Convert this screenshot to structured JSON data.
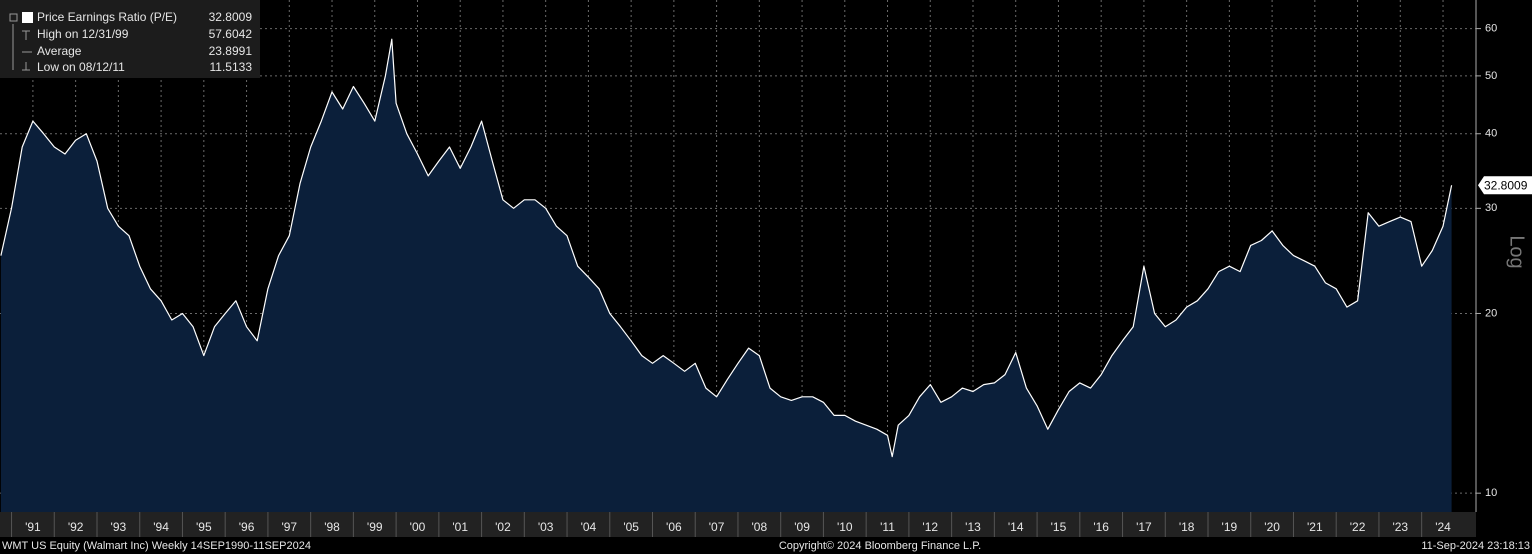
{
  "chart_data": {
    "type": "area",
    "scale": "log",
    "axis_label": "Log",
    "series": [
      {
        "name": "Price Earnings Ratio (P/E)",
        "color": "#ffffff",
        "fill": "#0b1f3a",
        "x": [
          1990.75,
          1991.0,
          1991.25,
          1991.5,
          1991.75,
          1992.0,
          1992.25,
          1992.5,
          1992.75,
          1993.0,
          1993.25,
          1993.5,
          1993.75,
          1994.0,
          1994.25,
          1994.5,
          1994.75,
          1995.0,
          1995.25,
          1995.5,
          1995.75,
          1996.0,
          1996.25,
          1996.5,
          1996.75,
          1997.0,
          1997.25,
          1997.5,
          1997.75,
          1998.0,
          1998.25,
          1998.5,
          1998.75,
          1999.0,
          1999.25,
          1999.5,
          1999.75,
          1999.9,
          2000.0,
          2000.25,
          2000.5,
          2000.75,
          2001.0,
          2001.25,
          2001.5,
          2001.75,
          2002.0,
          2002.25,
          2002.5,
          2002.75,
          2003.0,
          2003.25,
          2003.5,
          2003.75,
          2004.0,
          2004.25,
          2004.5,
          2004.75,
          2005.0,
          2005.25,
          2005.5,
          2005.75,
          2006.0,
          2006.25,
          2006.5,
          2006.75,
          2007.0,
          2007.25,
          2007.5,
          2007.75,
          2008.0,
          2008.25,
          2008.5,
          2008.75,
          2009.0,
          2009.25,
          2009.5,
          2009.75,
          2010.0,
          2010.25,
          2010.5,
          2010.75,
          2011.0,
          2011.25,
          2011.5,
          2011.61,
          2011.75,
          2012.0,
          2012.25,
          2012.5,
          2012.75,
          2013.0,
          2013.25,
          2013.5,
          2013.75,
          2014.0,
          2014.25,
          2014.5,
          2014.75,
          2015.0,
          2015.25,
          2015.5,
          2015.75,
          2016.0,
          2016.25,
          2016.5,
          2016.75,
          2017.0,
          2017.25,
          2017.5,
          2017.75,
          2018.0,
          2018.25,
          2018.5,
          2018.75,
          2019.0,
          2019.25,
          2019.5,
          2019.75,
          2020.0,
          2020.25,
          2020.5,
          2020.75,
          2021.0,
          2021.25,
          2021.5,
          2021.75,
          2022.0,
          2022.25,
          2022.5,
          2022.75,
          2023.0,
          2023.25,
          2023.5,
          2023.75,
          2024.0,
          2024.25,
          2024.5,
          2024.7
        ],
        "values": [
          25,
          30,
          38,
          42,
          40,
          38,
          37,
          39,
          40,
          36,
          30,
          28,
          27,
          24,
          22,
          21,
          19.5,
          20,
          19,
          17,
          19,
          20,
          21,
          19,
          18,
          22,
          25,
          27,
          33,
          38,
          42,
          47,
          44,
          48,
          45,
          42,
          50,
          57.6042,
          45,
          40,
          37,
          34,
          36,
          38,
          35,
          38,
          42,
          36,
          31,
          30,
          31,
          31,
          30,
          28,
          27,
          24,
          23,
          22,
          20,
          19,
          18,
          17,
          16.5,
          17,
          16.5,
          16,
          16.5,
          15,
          14.5,
          15.5,
          16.5,
          17.5,
          17,
          15,
          14.5,
          14.3,
          14.5,
          14.5,
          14.2,
          13.5,
          13.5,
          13.2,
          13,
          12.8,
          12.5,
          11.5133,
          13,
          13.5,
          14.5,
          15.2,
          14.2,
          14.5,
          15,
          14.8,
          15.2,
          15.3,
          15.8,
          17.2,
          15,
          14,
          12.8,
          13.8,
          14.8,
          15.3,
          15,
          15.8,
          17,
          18,
          19,
          24,
          20,
          19,
          19.5,
          20.5,
          21,
          22,
          23.5,
          24,
          23.5,
          26,
          26.5,
          27.5,
          26,
          25,
          24.5,
          24,
          22.5,
          22,
          20.5,
          21,
          29.5,
          28,
          28.5,
          29,
          28.5,
          24,
          25.5,
          28,
          32.8009
        ]
      }
    ],
    "stats": [
      {
        "label": "High on 12/31/99",
        "value": 57.6042
      },
      {
        "label": "Average",
        "value": 23.8991
      },
      {
        "label": "Low on 08/12/11",
        "value": 11.5133
      }
    ],
    "xlim": [
      1990.73,
      2024.71
    ],
    "xticks": [
      {
        "value": 1991.5,
        "label": "'91"
      },
      {
        "value": 1992.5,
        "label": "'92"
      },
      {
        "value": 1993.5,
        "label": "'93"
      },
      {
        "value": 1994.5,
        "label": "'94"
      },
      {
        "value": 1995.5,
        "label": "'95"
      },
      {
        "value": 1996.5,
        "label": "'96"
      },
      {
        "value": 1997.5,
        "label": "'97"
      },
      {
        "value": 1998.5,
        "label": "'98"
      },
      {
        "value": 1999.5,
        "label": "'99"
      },
      {
        "value": 2000.5,
        "label": "'00"
      },
      {
        "value": 2001.5,
        "label": "'01"
      },
      {
        "value": 2002.5,
        "label": "'02"
      },
      {
        "value": 2003.5,
        "label": "'03"
      },
      {
        "value": 2004.5,
        "label": "'04"
      },
      {
        "value": 2005.5,
        "label": "'05"
      },
      {
        "value": 2006.5,
        "label": "'06"
      },
      {
        "value": 2007.5,
        "label": "'07"
      },
      {
        "value": 2008.5,
        "label": "'08"
      },
      {
        "value": 2009.5,
        "label": "'09"
      },
      {
        "value": 2010.5,
        "label": "'10"
      },
      {
        "value": 2011.5,
        "label": "'11"
      },
      {
        "value": 2012.5,
        "label": "'12"
      },
      {
        "value": 2013.5,
        "label": "'13"
      },
      {
        "value": 2014.5,
        "label": "'14"
      },
      {
        "value": 2015.5,
        "label": "'15"
      },
      {
        "value": 2016.5,
        "label": "'16"
      },
      {
        "value": 2017.5,
        "label": "'17"
      },
      {
        "value": 2018.5,
        "label": "'18"
      },
      {
        "value": 2019.5,
        "label": "'19"
      },
      {
        "value": 2020.5,
        "label": "'20"
      },
      {
        "value": 2021.5,
        "label": "'21"
      },
      {
        "value": 2022.5,
        "label": "'22"
      },
      {
        "value": 2023.5,
        "label": "'23"
      },
      {
        "value": 2024.5,
        "label": "'24"
      }
    ],
    "ylim": [
      9.3,
      67
    ],
    "yticks": [
      10,
      20,
      30,
      40,
      50,
      60
    ],
    "grid": true,
    "footer": {
      "left": "WMT US Equity (Walmart Inc)  Weekly 14SEP1990-11SEP2024",
      "center": "Copyright© 2024 Bloomberg Finance L.P.",
      "right": "11-Sep-2024 23:18:13"
    }
  }
}
